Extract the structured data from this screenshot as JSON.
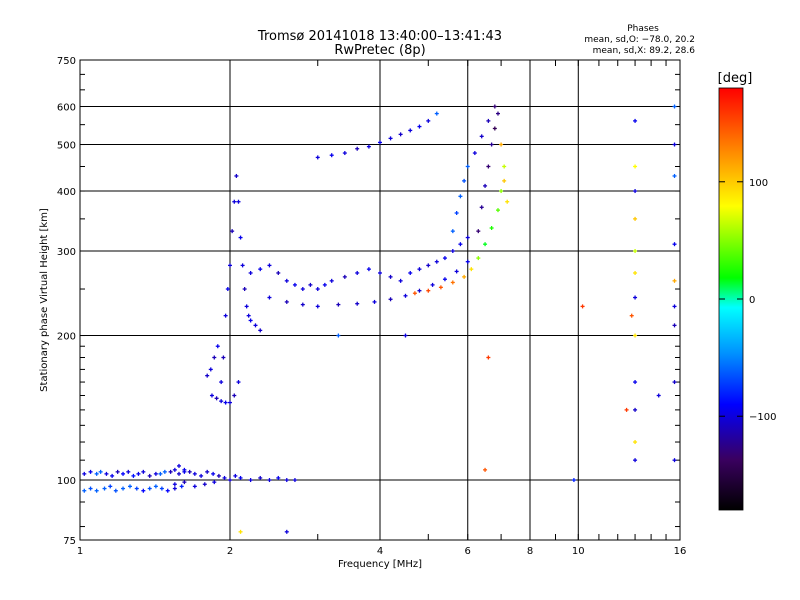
{
  "chart_data": {
    "type": "scatter",
    "title": "Tromsø 20141018 13:40:00–13:41:43",
    "subtitle": "RwPretec (8p)",
    "stats_title": "Phases",
    "stats_line_o": "mean, sd,O: −78.0, 20.2",
    "stats_line_x": "mean, sd,X:  89.2, 28.6",
    "xlabel": "Frequency [MHz]",
    "ylabel": "Stationary phase Virtual Height [km]",
    "x_scale": "log",
    "y_scale": "log",
    "xlim": [
      1,
      16
    ],
    "ylim": [
      75,
      750
    ],
    "x_ticks": [
      {
        "value": 1,
        "label": "1"
      },
      {
        "value": 2,
        "label": "2"
      },
      {
        "value": 4,
        "label": "4"
      },
      {
        "value": 6,
        "label": "6"
      },
      {
        "value": 8,
        "label": "8"
      },
      {
        "value": 10,
        "label": "10"
      },
      {
        "value": 16,
        "label": "16"
      }
    ],
    "y_ticks": [
      {
        "value": 75,
        "label": "75"
      },
      {
        "value": 100,
        "label": "100"
      },
      {
        "value": 200,
        "label": "200"
      },
      {
        "value": 300,
        "label": "300"
      },
      {
        "value": 400,
        "label": "400"
      },
      {
        "value": 500,
        "label": "500"
      },
      {
        "value": 600,
        "label": "600"
      },
      {
        "value": 750,
        "label": "750"
      }
    ],
    "x_grid": [
      2,
      4,
      6,
      8,
      10
    ],
    "y_grid": [
      100,
      200,
      300,
      400,
      500,
      600
    ],
    "grid": true,
    "colorbar": {
      "label": "[deg]",
      "range": [
        -180,
        180
      ],
      "ticks": [
        {
          "value": 100,
          "label": "100"
        },
        {
          "value": 0,
          "label": "0"
        },
        {
          "value": -100,
          "label": "−100"
        }
      ],
      "colors": [
        "#000000",
        "#3a0060",
        "#0000ff",
        "#0090ff",
        "#00ffff",
        "#00ff00",
        "#ffff00",
        "#ff8000",
        "#ff0000"
      ]
    },
    "series": [
      {
        "x": [
          1.02,
          1.05,
          1.08,
          1.1,
          1.13,
          1.16,
          1.19,
          1.22,
          1.25,
          1.28,
          1.31,
          1.34,
          1.38,
          1.42,
          1.45,
          1.48,
          1.52,
          1.55,
          1.58,
          1.62
        ],
        "y": [
          103,
          104,
          103,
          104,
          103,
          102,
          104,
          103,
          104,
          102,
          103,
          104,
          102,
          103,
          103,
          104,
          104,
          105,
          103,
          104
        ],
        "phase": [
          -100,
          -95,
          -60,
          -60,
          -100,
          -95,
          -110,
          -90,
          -100,
          -85,
          -95,
          -100,
          -110,
          -100,
          -60,
          -60,
          -110,
          -100,
          -105,
          -95
        ]
      },
      {
        "x": [
          1.02,
          1.05,
          1.08,
          1.12,
          1.15,
          1.18,
          1.22,
          1.26,
          1.3,
          1.34,
          1.38,
          1.42,
          1.46,
          1.5,
          1.55,
          1.6
        ],
        "y": [
          95,
          96,
          95,
          96,
          97,
          95,
          96,
          97,
          96,
          95,
          96,
          97,
          96,
          95,
          96,
          97
        ],
        "phase": [
          -60,
          -65,
          -60,
          -60,
          -70,
          -65,
          -60,
          -60,
          -70,
          -90,
          -65,
          -60,
          -70,
          -90,
          -100,
          -80
        ]
      },
      {
        "x": [
          1.58,
          1.62,
          1.66,
          1.7,
          1.75,
          1.8,
          1.85,
          1.9,
          1.95,
          2.0,
          2.05,
          2.1,
          2.2,
          2.3,
          2.4,
          2.5,
          2.6,
          2.7
        ],
        "y": [
          107,
          105,
          104,
          103,
          102,
          104,
          103,
          102,
          101,
          100,
          102,
          101,
          100,
          101,
          100,
          101,
          100,
          100
        ],
        "phase": [
          -100,
          -95,
          -110,
          -100,
          -100,
          -105,
          -95,
          -110,
          -100,
          -105,
          -100,
          -95,
          -100,
          -105,
          -100,
          -95,
          -100,
          -100
        ]
      },
      {
        "x": [
          1.55,
          1.62,
          1.7,
          1.78,
          1.86
        ],
        "y": [
          98,
          99,
          97,
          98,
          99
        ],
        "phase": [
          -100,
          -110,
          -100,
          -105,
          -100
        ]
      },
      {
        "x": [
          1.8,
          1.83,
          1.86,
          1.89,
          1.92,
          1.94,
          1.96,
          1.98,
          2.0,
          2.02,
          2.04,
          2.06,
          2.08,
          2.1,
          2.12,
          2.14,
          2.16,
          2.18,
          2.2,
          2.25,
          2.3
        ],
        "y": [
          165,
          170,
          180,
          190,
          160,
          180,
          220,
          250,
          280,
          330,
          380,
          430,
          380,
          320,
          280,
          250,
          230,
          220,
          215,
          210,
          205
        ],
        "phase": [
          -105,
          -100,
          -110,
          -95,
          -100,
          -110,
          -100,
          -95,
          -100,
          -110,
          -100,
          -105,
          -100,
          -95,
          -100,
          -110,
          -100,
          -100,
          -95,
          -100,
          -105
        ]
      },
      {
        "x": [
          1.84,
          1.88,
          1.92,
          1.96,
          2.0,
          2.04,
          2.08
        ],
        "y": [
          150,
          148,
          146,
          145,
          145,
          150,
          160
        ],
        "phase": [
          -100,
          -110,
          -100,
          -95,
          -100,
          -110,
          -100
        ]
      },
      {
        "x": [
          2.2,
          2.3,
          2.4,
          2.5,
          2.6,
          2.7,
          2.8,
          2.9,
          3.0,
          3.1,
          3.2,
          3.4,
          3.6,
          3.8,
          4.0,
          4.2,
          4.4,
          4.6,
          4.8,
          5.0,
          5.2,
          5.4,
          5.6,
          5.8,
          6.0
        ],
        "y": [
          270,
          275,
          280,
          270,
          260,
          255,
          250,
          255,
          250,
          255,
          260,
          265,
          270,
          275,
          270,
          265,
          260,
          270,
          275,
          280,
          285,
          290,
          300,
          310,
          320
        ],
        "phase": [
          -100,
          -95,
          -100,
          -110,
          -100,
          -95,
          -100,
          -105,
          -100,
          -95,
          -100,
          -110,
          -100,
          -95,
          -100,
          -105,
          -100,
          -95,
          -100,
          -105,
          -100,
          -95,
          -100,
          -95,
          -100
        ]
      },
      {
        "x": [
          2.4,
          2.6,
          2.8,
          3.0,
          3.3,
          3.6,
          3.9,
          4.2,
          4.5,
          4.8,
          5.1,
          5.4,
          5.7,
          6.0
        ],
        "y": [
          240,
          235,
          232,
          230,
          232,
          233,
          235,
          238,
          242,
          248,
          255,
          262,
          272,
          285
        ],
        "phase": [
          -100,
          -110,
          -105,
          -100,
          -110,
          -105,
          -100,
          -110,
          -100,
          -105,
          -100,
          -95,
          -100,
          -95
        ]
      },
      {
        "x": [
          4.7,
          5.0,
          5.3,
          5.6,
          5.9,
          6.1,
          6.3,
          6.5,
          6.7,
          6.9,
          7.0,
          7.1
        ],
        "y": [
          245,
          248,
          252,
          258,
          265,
          275,
          290,
          310,
          335,
          365,
          400,
          450
        ],
        "phase": [
          150,
          155,
          150,
          140,
          120,
          100,
          70,
          40,
          50,
          60,
          70,
          80
        ]
      },
      {
        "x": [
          3.0,
          3.2,
          3.4,
          3.6,
          3.8,
          4.0,
          4.2,
          4.4,
          4.6,
          4.8,
          5.0,
          5.2
        ],
        "y": [
          470,
          475,
          480,
          490,
          495,
          505,
          515,
          525,
          535,
          545,
          560,
          580
        ],
        "phase": [
          -100,
          -95,
          -100,
          -110,
          -100,
          -95,
          -100,
          -105,
          -100,
          -95,
          -100,
          -60
        ]
      },
      {
        "x": [
          5.6,
          5.7,
          5.8,
          5.9,
          6.0,
          6.2,
          6.4,
          6.6,
          6.8
        ],
        "y": [
          330,
          360,
          390,
          420,
          450,
          480,
          520,
          560,
          600
        ],
        "phase": [
          -60,
          -70,
          -60,
          -65,
          -60,
          -100,
          -105,
          -110,
          -130
        ]
      },
      {
        "x": [
          6.3,
          6.4,
          6.5,
          6.6,
          6.7,
          6.8,
          6.9,
          7.0,
          7.1,
          7.2
        ],
        "y": [
          330,
          370,
          410,
          450,
          500,
          540,
          580,
          500,
          420,
          380
        ],
        "phase": [
          -130,
          -120,
          -110,
          -130,
          -120,
          -140,
          -125,
          120,
          110,
          100
        ]
      },
      {
        "x": [
          13.0,
          13.0,
          13.0,
          13.0,
          13.0,
          13.0,
          13.0,
          13.0,
          13.0,
          13.0,
          13.0,
          13.0
        ],
        "y": [
          110,
          120,
          140,
          160,
          200,
          240,
          270,
          300,
          350,
          400,
          450,
          560
        ],
        "phase": [
          -100,
          100,
          -105,
          -95,
          100,
          -100,
          100,
          80,
          110,
          -100,
          90,
          -95
        ]
      },
      {
        "x": [
          15.6,
          15.6,
          15.6,
          15.6,
          15.6,
          15.6,
          15.6,
          15.6,
          15.6
        ],
        "y": [
          110,
          160,
          210,
          230,
          260,
          310,
          430,
          500,
          600
        ],
        "phase": [
          -100,
          -105,
          -110,
          -100,
          120,
          -95,
          -60,
          -100,
          -60
        ]
      },
      {
        "x": [
          6.5,
          6.6,
          9.8,
          10.2,
          12.5,
          12.8,
          14.5,
          4.5,
          3.3,
          2.1,
          2.6
        ],
        "y": [
          105,
          180,
          100,
          230,
          140,
          220,
          150,
          200,
          200,
          78,
          78
        ],
        "phase": [
          150,
          160,
          -80,
          160,
          160,
          150,
          -100,
          -100,
          -60,
          100,
          -100
        ]
      }
    ]
  }
}
